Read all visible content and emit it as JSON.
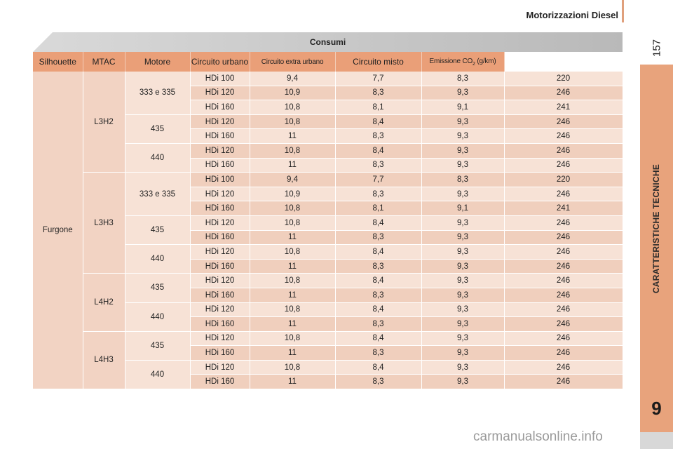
{
  "header": {
    "section_title": "Motorizzazioni Diesel",
    "page_number": "157"
  },
  "sidebar": {
    "chapter_label": "CARATTERISTICHE TECNICHE",
    "chapter_number": "9"
  },
  "table": {
    "title": "Consumi",
    "columns": [
      "Silhouette",
      "MTAC",
      "Motore",
      "Circuito urbano",
      "Circuito extra urbano",
      "Circuito misto",
      "Emissione CO",
      "2",
      " (g/km)"
    ],
    "silhouette": "Furgone",
    "groups": [
      {
        "version": "L3H2",
        "mtac": [
          {
            "label": "333 e 335",
            "rows": [
              [
                "HDi 100",
                "9,4",
                "7,7",
                "8,3",
                "220"
              ],
              [
                "HDi 120",
                "10,9",
                "8,3",
                "9,3",
                "246"
              ],
              [
                "HDi 160",
                "10,8",
                "8,1",
                "9,1",
                "241"
              ]
            ]
          },
          {
            "label": "435",
            "rows": [
              [
                "HDi 120",
                "10,8",
                "8,4",
                "9,3",
                "246"
              ],
              [
                "HDi 160",
                "11",
                "8,3",
                "9,3",
                "246"
              ]
            ]
          },
          {
            "label": "440",
            "rows": [
              [
                "HDi 120",
                "10,8",
                "8,4",
                "9,3",
                "246"
              ],
              [
                "HDi 160",
                "11",
                "8,3",
                "9,3",
                "246"
              ]
            ]
          }
        ]
      },
      {
        "version": "L3H3",
        "mtac": [
          {
            "label": "333 e 335",
            "rows": [
              [
                "HDi 100",
                "9,4",
                "7,7",
                "8,3",
                "220"
              ],
              [
                "HDi 120",
                "10,9",
                "8,3",
                "9,3",
                "246"
              ],
              [
                "HDi 160",
                "10,8",
                "8,1",
                "9,1",
                "241"
              ]
            ]
          },
          {
            "label": "435",
            "rows": [
              [
                "HDi 120",
                "10,8",
                "8,4",
                "9,3",
                "246"
              ],
              [
                "HDi 160",
                "11",
                "8,3",
                "9,3",
                "246"
              ]
            ]
          },
          {
            "label": "440",
            "rows": [
              [
                "HDi 120",
                "10,8",
                "8,4",
                "9,3",
                "246"
              ],
              [
                "HDi 160",
                "11",
                "8,3",
                "9,3",
                "246"
              ]
            ]
          }
        ]
      },
      {
        "version": "L4H2",
        "mtac": [
          {
            "label": "435",
            "rows": [
              [
                "HDi 120",
                "10,8",
                "8,4",
                "9,3",
                "246"
              ],
              [
                "HDi 160",
                "11",
                "8,3",
                "9,3",
                "246"
              ]
            ]
          },
          {
            "label": "440",
            "rows": [
              [
                "HDi 120",
                "10,8",
                "8,4",
                "9,3",
                "246"
              ],
              [
                "HDi 160",
                "11",
                "8,3",
                "9,3",
                "246"
              ]
            ]
          }
        ]
      },
      {
        "version": "L4H3",
        "mtac": [
          {
            "label": "435",
            "rows": [
              [
                "HDi 120",
                "10,8",
                "8,4",
                "9,3",
                "246"
              ],
              [
                "HDi 160",
                "11",
                "8,3",
                "9,3",
                "246"
              ]
            ]
          },
          {
            "label": "440",
            "rows": [
              [
                "HDi 120",
                "10,8",
                "8,4",
                "9,3",
                "246"
              ],
              [
                "HDi 160",
                "11",
                "8,3",
                "9,3",
                "246"
              ]
            ]
          }
        ]
      }
    ]
  },
  "watermark": "carmanualsonline.info",
  "colors": {
    "accent": "#e8a37c",
    "header_row": "#ea9f78",
    "row_light": "#f7e2d6",
    "row_dark": "#f0cfbd",
    "title_band": "#c8c8c8"
  }
}
